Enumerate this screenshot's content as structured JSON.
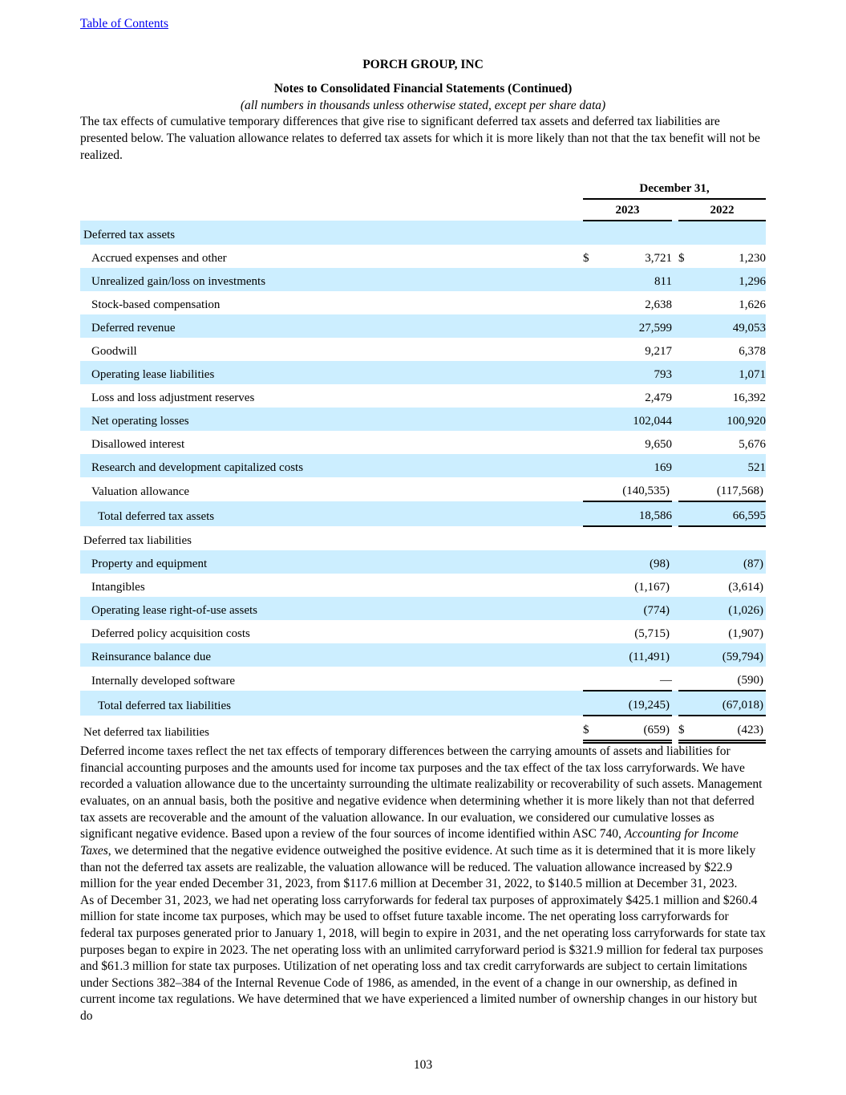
{
  "page": {
    "toc_link": "Table of Contents",
    "company": "PORCH GROUP, INC",
    "notes_title": "Notes to Consolidated Financial Statements (Continued)",
    "notes_subtitle": "(all numbers in thousands unless otherwise stated, except per share data)",
    "page_number": "103"
  },
  "colors": {
    "shaded_row": "#cceeff",
    "link": "#0000ee",
    "text": "#000000"
  },
  "paragraphs": {
    "intro": "The tax effects of cumulative temporary differences that give rise to significant deferred tax assets and deferred tax liabilities are presented below. The valuation allowance relates to deferred tax assets for which it is more likely than not that the tax benefit will not be realized.",
    "valuation_part1": "Deferred income taxes reflect the net tax effects of temporary differences between the carrying amounts of assets and liabilities for financial accounting purposes and the amounts used for income tax purposes and the tax effect of the tax loss carryforwards. We have recorded a valuation allowance due to the uncertainty surrounding the ultimate realizability or recoverability of such assets. Management evaluates, on an annual basis, both the positive and negative evidence when determining whether it is more likely than not that deferred tax assets are recoverable and the amount of the valuation allowance. In our evaluation, we considered our cumulative losses as significant negative evidence. Based upon a review of the four sources of income identified within ASC 740, ",
    "valuation_italic": "Accounting for Income Taxes",
    "valuation_part2": ", we determined that the negative evidence outweighed the positive evidence. At such time as it is determined that it is more likely than not the deferred tax assets are realizable, the valuation allowance will be reduced. The valuation allowance increased by $22.9 million for the year ended December 31, 2023, from $117.6 million at December 31, 2022, to $140.5 million at December 31, 2023.",
    "nol": "As of December 31, 2023, we had net operating loss carryforwards for federal tax purposes of approximately $425.1 million and $260.4 million for state income tax purposes, which may be used to offset future taxable income. The net operating loss carryforwards for federal tax purposes generated prior to January 1, 2018, will begin to expire in 2031, and the net operating loss carryforwards for state tax purposes began to expire in 2023. The net operating loss with an unlimited carryforward period is $321.9 million for federal tax purposes and $61.3 million for state tax purposes. Utilization of net operating loss and tax credit carryforwards are subject to certain limitations under Sections 382–384 of the Internal Revenue Code of 1986, as amended, in the event of a change in our ownership, as defined in current income tax regulations. We have determined that we have experienced a limited number of ownership changes in our history but do"
  },
  "table": {
    "header": {
      "date_label": "December 31,",
      "col_2023": "2023",
      "col_2022": "2022"
    },
    "rows": [
      {
        "label": "Deferred tax assets",
        "indent": 0,
        "d1": "",
        "v1": "",
        "d2": "",
        "v2": "",
        "shaded": true,
        "rule": "none"
      },
      {
        "label": "Accrued expenses and other",
        "indent": 1,
        "d1": "$",
        "v1": "3,721",
        "d2": "$",
        "v2": "1,230",
        "shaded": false,
        "rule": "none"
      },
      {
        "label": "Unrealized gain/loss on investments",
        "indent": 1,
        "d1": "",
        "v1": "811",
        "d2": "",
        "v2": "1,296",
        "shaded": true,
        "rule": "none"
      },
      {
        "label": "Stock-based compensation",
        "indent": 1,
        "d1": "",
        "v1": "2,638",
        "d2": "",
        "v2": "1,626",
        "shaded": false,
        "rule": "none"
      },
      {
        "label": "Deferred revenue",
        "indent": 1,
        "d1": "",
        "v1": "27,599",
        "d2": "",
        "v2": "49,053",
        "shaded": true,
        "rule": "none"
      },
      {
        "label": "Goodwill",
        "indent": 1,
        "d1": "",
        "v1": "9,217",
        "d2": "",
        "v2": "6,378",
        "shaded": false,
        "rule": "none"
      },
      {
        "label": "Operating lease liabilities",
        "indent": 1,
        "d1": "",
        "v1": "793",
        "d2": "",
        "v2": "1,071",
        "shaded": true,
        "rule": "none"
      },
      {
        "label": "Loss and loss adjustment reserves",
        "indent": 1,
        "d1": "",
        "v1": "2,479",
        "d2": "",
        "v2": "16,392",
        "shaded": false,
        "rule": "none"
      },
      {
        "label": "Net operating losses",
        "indent": 1,
        "d1": "",
        "v1": "102,044",
        "d2": "",
        "v2": "100,920",
        "shaded": true,
        "rule": "none"
      },
      {
        "label": "Disallowed interest",
        "indent": 1,
        "d1": "",
        "v1": "9,650",
        "d2": "",
        "v2": "5,676",
        "shaded": false,
        "rule": "none"
      },
      {
        "label": "Research and development capitalized costs",
        "indent": 1,
        "d1": "",
        "v1": "169",
        "d2": "",
        "v2": "521",
        "shaded": true,
        "rule": "none"
      },
      {
        "label": "Valuation allowance",
        "indent": 1,
        "d1": "",
        "v1": "(140,535)",
        "d2": "",
        "v2": "(117,568)",
        "shaded": false,
        "rule": "single"
      },
      {
        "label": "Total deferred tax assets",
        "indent": 2,
        "d1": "",
        "v1": "18,586",
        "d2": "",
        "v2": "66,595",
        "shaded": true,
        "rule": "single"
      },
      {
        "label": "Deferred tax liabilities",
        "indent": 0,
        "d1": "",
        "v1": "",
        "d2": "",
        "v2": "",
        "shaded": false,
        "rule": "none"
      },
      {
        "label": "Property and equipment",
        "indent": 1,
        "d1": "",
        "v1": "(98)",
        "d2": "",
        "v2": "(87)",
        "shaded": true,
        "rule": "none"
      },
      {
        "label": "Intangibles",
        "indent": 1,
        "d1": "",
        "v1": "(1,167)",
        "d2": "",
        "v2": "(3,614)",
        "shaded": false,
        "rule": "none"
      },
      {
        "label": "Operating lease right-of-use assets",
        "indent": 1,
        "d1": "",
        "v1": "(774)",
        "d2": "",
        "v2": "(1,026)",
        "shaded": true,
        "rule": "none"
      },
      {
        "label": "Deferred policy acquisition costs",
        "indent": 1,
        "d1": "",
        "v1": "(5,715)",
        "d2": "",
        "v2": "(1,907)",
        "shaded": false,
        "rule": "none"
      },
      {
        "label": "Reinsurance balance due",
        "indent": 1,
        "d1": "",
        "v1": "(11,491)",
        "d2": "",
        "v2": "(59,794)",
        "shaded": true,
        "rule": "none"
      },
      {
        "label": "Internally developed software",
        "indent": 1,
        "d1": "",
        "v1": "—",
        "d2": "",
        "v2": "(590)",
        "shaded": false,
        "rule": "single"
      },
      {
        "label": "Total deferred tax liabilities",
        "indent": 2,
        "d1": "",
        "v1": "(19,245)",
        "d2": "",
        "v2": "(67,018)",
        "shaded": true,
        "rule": "single"
      },
      {
        "label": "Net deferred tax liabilities",
        "indent": 0,
        "d1": "$",
        "v1": "(659)",
        "d2": "$",
        "v2": "(423)",
        "shaded": false,
        "rule": "double"
      }
    ]
  }
}
